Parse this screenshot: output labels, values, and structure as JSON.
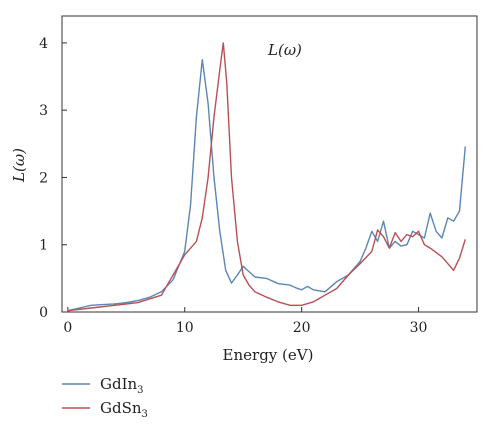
{
  "chart_data": {
    "type": "line",
    "title": "L(ω)",
    "xlabel": "Energy (eV)",
    "ylabel": "L(ω)",
    "xlim": [
      -0.5,
      35
    ],
    "ylim": [
      0,
      4.4
    ],
    "xticks": [
      0,
      10,
      20,
      30
    ],
    "yticks": [
      0,
      1,
      2,
      3,
      4
    ],
    "grid": false,
    "legend_position": "bottom-left, below plot",
    "series": [
      {
        "name": "GdIn3",
        "name_base": "GdIn",
        "name_sub": "3",
        "color": "#5b86b5",
        "x": [
          0,
          1,
          2,
          3,
          4,
          5,
          6,
          7,
          8,
          9,
          10,
          10.5,
          11,
          11.5,
          12,
          12.5,
          13,
          13.5,
          14,
          14.5,
          15,
          15.5,
          16,
          17,
          18,
          19,
          19.5,
          20,
          20.5,
          21,
          22,
          23,
          24,
          25,
          25.5,
          26,
          26.5,
          27,
          27.5,
          28,
          28.5,
          29,
          29.5,
          30,
          30.5,
          31,
          31.5,
          32,
          32.5,
          33,
          33.5,
          34
        ],
        "y": [
          0.02,
          0.06,
          0.1,
          0.11,
          0.12,
          0.14,
          0.17,
          0.22,
          0.3,
          0.48,
          0.9,
          1.6,
          2.9,
          3.75,
          3.1,
          2.0,
          1.2,
          0.62,
          0.43,
          0.55,
          0.68,
          0.6,
          0.52,
          0.5,
          0.42,
          0.4,
          0.36,
          0.33,
          0.38,
          0.33,
          0.3,
          0.45,
          0.55,
          0.75,
          0.95,
          1.2,
          1.05,
          1.35,
          0.95,
          1.05,
          0.98,
          1.0,
          1.2,
          1.15,
          1.1,
          1.47,
          1.2,
          1.1,
          1.4,
          1.35,
          1.5,
          2.46
        ]
      },
      {
        "name": "GdSn3",
        "name_base": "GdSn",
        "name_sub": "3",
        "color": "#b85055",
        "x": [
          0,
          2,
          4,
          6,
          8,
          9,
          10,
          11,
          11.5,
          12,
          12.5,
          13,
          13.3,
          13.6,
          14,
          14.5,
          15,
          15.5,
          16,
          17,
          18,
          19,
          20,
          21,
          22,
          23,
          24,
          25,
          26,
          26.5,
          27,
          27.5,
          28,
          28.5,
          29,
          29.5,
          30,
          30.5,
          31,
          32,
          33,
          33.5,
          34
        ],
        "y": [
          0.02,
          0.06,
          0.1,
          0.14,
          0.25,
          0.55,
          0.85,
          1.05,
          1.4,
          2.0,
          2.9,
          3.6,
          4.0,
          3.4,
          2.0,
          1.05,
          0.55,
          0.4,
          0.3,
          0.22,
          0.15,
          0.1,
          0.1,
          0.15,
          0.25,
          0.35,
          0.55,
          0.72,
          0.9,
          1.22,
          1.12,
          0.95,
          1.18,
          1.05,
          1.15,
          1.12,
          1.2,
          1.0,
          0.95,
          0.82,
          0.62,
          0.8,
          1.08
        ]
      }
    ]
  }
}
